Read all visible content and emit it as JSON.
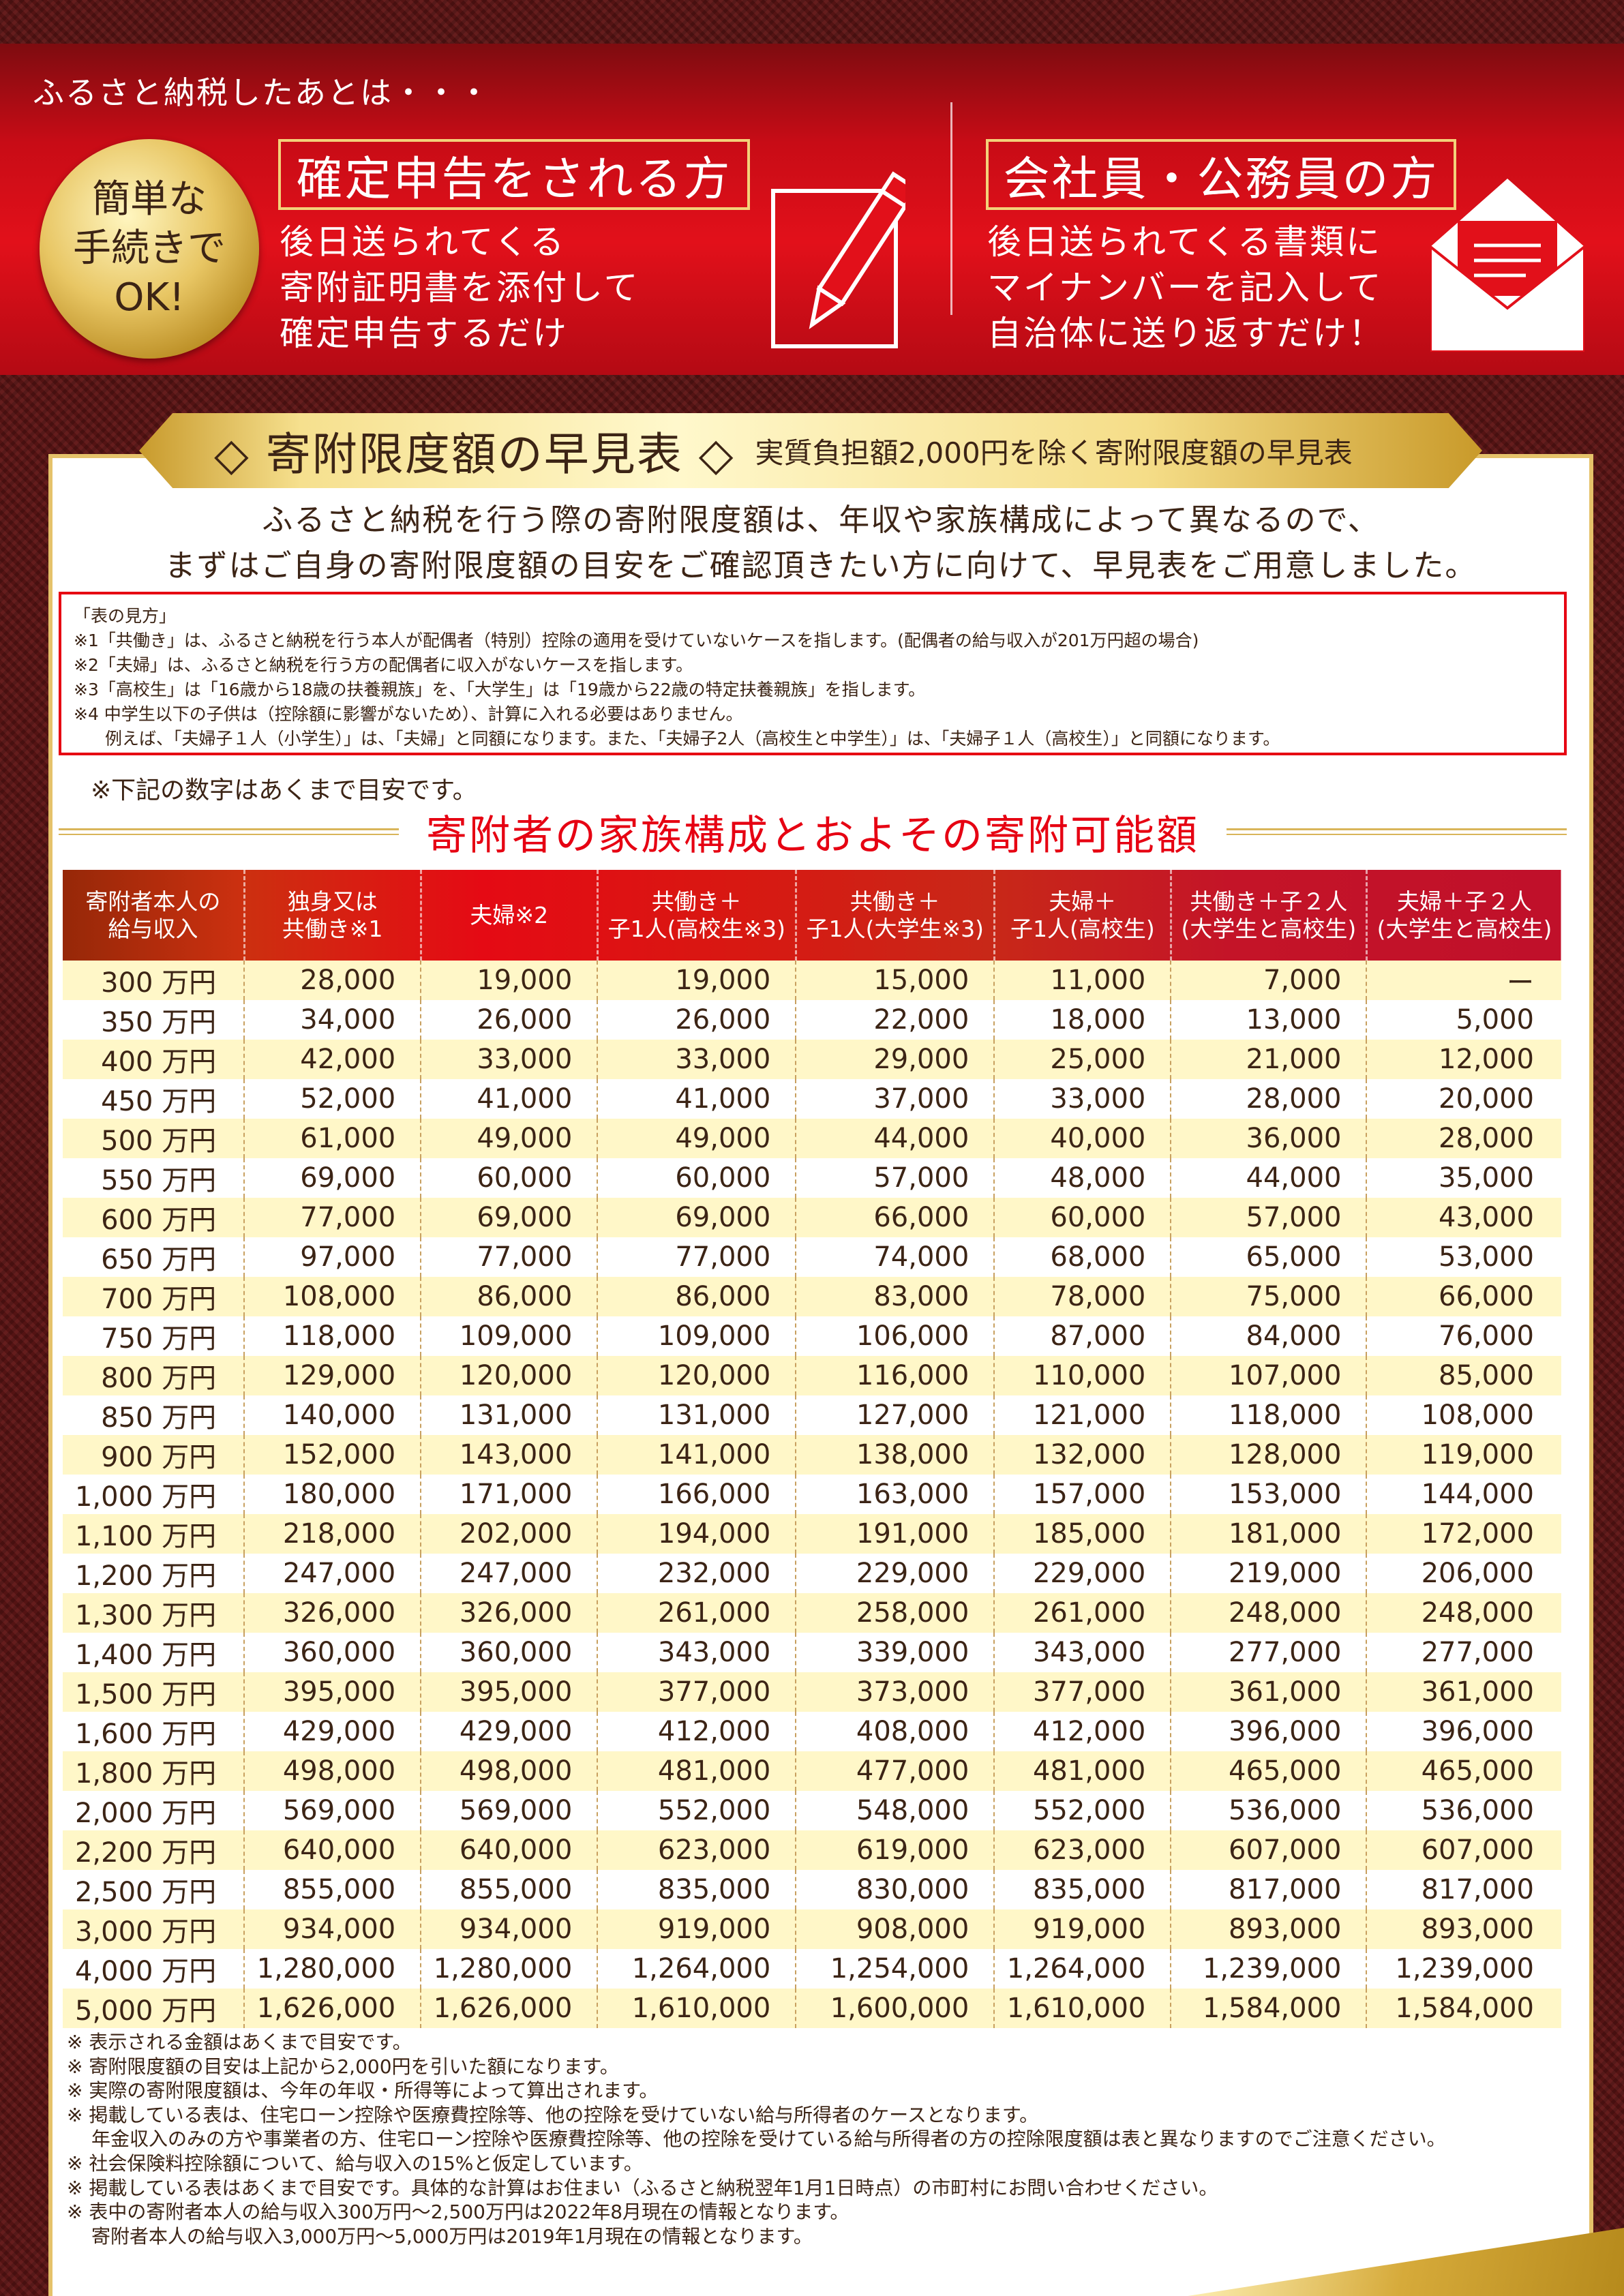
{
  "banner": {
    "title": "ふるさと納税したあとは・・・",
    "badge_lines": [
      "簡単な",
      "手続きで",
      "OK!"
    ],
    "left": {
      "heading": "確定申告をされる方",
      "lines": [
        "後日送られてくる",
        "寄附証明書を添付して",
        "確定申告するだけ"
      ],
      "icon": "pencil-paper-icon"
    },
    "right": {
      "heading": "会社員・公務員の方",
      "lines": [
        "後日送られてくる書類に",
        "マイナンバーを記入して",
        "自治体に送り返すだけ！"
      ],
      "icon": "envelope-icon"
    }
  },
  "ribbon": {
    "title": "◇ 寄附限度額の早見表 ◇",
    "subtitle": "実質負担額2,000円を除く寄附限度額の早見表"
  },
  "intro": [
    "ふるさと納税を行う際の寄附限度額は、年収や家族構成によって異なるので、",
    "まずはご自身の寄附限度額の目安をご確認頂きたい方に向けて、早見表をご用意しました。"
  ],
  "notes": [
    "「表の見方」",
    "※1「共働き」は、ふるさと納税を行う本人が配偶者（特別）控除の適用を受けていないケースを指します。(配偶者の給与収入が201万円超の場合)",
    "※2「夫婦」は、ふるさと納税を行う方の配偶者に収入がないケースを指します。",
    "※3「高校生」は「16歳から18歳の扶養親族」を、「大学生」は「19歳から22歳の特定扶養親族」を指します。",
    "※4 中学生以下の子供は（控除額に影響がないため）、計算に入れる必要はありません。",
    "例えば、「夫婦子１人（小学生）」は、「夫婦」と同額になります。また、「夫婦子2人（高校生と中学生）」は、「夫婦子１人（高校生）」と同額になります。"
  ],
  "caution": "※下記の数字はあくまで目安です。",
  "table_title": "寄附者の家族構成とおよその寄附可能額",
  "table": {
    "headers": [
      [
        "寄附者本人の",
        "給与収入"
      ],
      [
        "独身又は",
        "共働き※1"
      ],
      [
        "夫婦※2"
      ],
      [
        "共働き＋",
        "子1人(高校生※3)"
      ],
      [
        "共働き＋",
        "子1人(大学生※3)"
      ],
      [
        "夫婦＋",
        "子1人(高校生)"
      ],
      [
        "共働き＋子２人",
        "(大学生と高校生)"
      ],
      [
        "夫婦＋子２人",
        "(大学生と高校生)"
      ]
    ],
    "rows": [
      [
        "300 万円",
        "28,000",
        "19,000",
        "19,000",
        "15,000",
        "11,000",
        "7,000",
        "ー"
      ],
      [
        "350 万円",
        "34,000",
        "26,000",
        "26,000",
        "22,000",
        "18,000",
        "13,000",
        "5,000"
      ],
      [
        "400 万円",
        "42,000",
        "33,000",
        "33,000",
        "29,000",
        "25,000",
        "21,000",
        "12,000"
      ],
      [
        "450 万円",
        "52,000",
        "41,000",
        "41,000",
        "37,000",
        "33,000",
        "28,000",
        "20,000"
      ],
      [
        "500 万円",
        "61,000",
        "49,000",
        "49,000",
        "44,000",
        "40,000",
        "36,000",
        "28,000"
      ],
      [
        "550 万円",
        "69,000",
        "60,000",
        "60,000",
        "57,000",
        "48,000",
        "44,000",
        "35,000"
      ],
      [
        "600 万円",
        "77,000",
        "69,000",
        "69,000",
        "66,000",
        "60,000",
        "57,000",
        "43,000"
      ],
      [
        "650 万円",
        "97,000",
        "77,000",
        "77,000",
        "74,000",
        "68,000",
        "65,000",
        "53,000"
      ],
      [
        "700 万円",
        "108,000",
        "86,000",
        "86,000",
        "83,000",
        "78,000",
        "75,000",
        "66,000"
      ],
      [
        "750 万円",
        "118,000",
        "109,000",
        "109,000",
        "106,000",
        "87,000",
        "84,000",
        "76,000"
      ],
      [
        "800 万円",
        "129,000",
        "120,000",
        "120,000",
        "116,000",
        "110,000",
        "107,000",
        "85,000"
      ],
      [
        "850 万円",
        "140,000",
        "131,000",
        "131,000",
        "127,000",
        "121,000",
        "118,000",
        "108,000"
      ],
      [
        "900 万円",
        "152,000",
        "143,000",
        "141,000",
        "138,000",
        "132,000",
        "128,000",
        "119,000"
      ],
      [
        "1,000 万円",
        "180,000",
        "171,000",
        "166,000",
        "163,000",
        "157,000",
        "153,000",
        "144,000"
      ],
      [
        "1,100 万円",
        "218,000",
        "202,000",
        "194,000",
        "191,000",
        "185,000",
        "181,000",
        "172,000"
      ],
      [
        "1,200 万円",
        "247,000",
        "247,000",
        "232,000",
        "229,000",
        "229,000",
        "219,000",
        "206,000"
      ],
      [
        "1,300 万円",
        "326,000",
        "326,000",
        "261,000",
        "258,000",
        "261,000",
        "248,000",
        "248,000"
      ],
      [
        "1,400 万円",
        "360,000",
        "360,000",
        "343,000",
        "339,000",
        "343,000",
        "277,000",
        "277,000"
      ],
      [
        "1,500 万円",
        "395,000",
        "395,000",
        "377,000",
        "373,000",
        "377,000",
        "361,000",
        "361,000"
      ],
      [
        "1,600 万円",
        "429,000",
        "429,000",
        "412,000",
        "408,000",
        "412,000",
        "396,000",
        "396,000"
      ],
      [
        "1,800 万円",
        "498,000",
        "498,000",
        "481,000",
        "477,000",
        "481,000",
        "465,000",
        "465,000"
      ],
      [
        "2,000 万円",
        "569,000",
        "569,000",
        "552,000",
        "548,000",
        "552,000",
        "536,000",
        "536,000"
      ],
      [
        "2,200 万円",
        "640,000",
        "640,000",
        "623,000",
        "619,000",
        "623,000",
        "607,000",
        "607,000"
      ],
      [
        "2,500 万円",
        "855,000",
        "855,000",
        "835,000",
        "830,000",
        "835,000",
        "817,000",
        "817,000"
      ],
      [
        "3,000 万円",
        "934,000",
        "934,000",
        "919,000",
        "908,000",
        "919,000",
        "893,000",
        "893,000"
      ],
      [
        "4,000 万円",
        "1,280,000",
        "1,280,000",
        "1,264,000",
        "1,254,000",
        "1,264,000",
        "1,239,000",
        "1,239,000"
      ],
      [
        "5,000 万円",
        "1,626,000",
        "1,626,000",
        "1,610,000",
        "1,600,000",
        "1,610,000",
        "1,584,000",
        "1,584,000"
      ]
    ]
  },
  "footer_notes": [
    {
      "text": "※ 表示される金額はあくまで目安です。",
      "indent": false
    },
    {
      "text": "※ 寄附限度額の目安は上記から2,000円を引いた額になります。",
      "indent": false
    },
    {
      "text": "※ 実際の寄附限度額は、今年の年収・所得等によって算出されます。",
      "indent": false
    },
    {
      "text": "※ 掲載している表は、住宅ローン控除や医療費控除等、他の控除を受けていない給与所得者のケースとなります。",
      "indent": false
    },
    {
      "text": "年金収入のみの方や事業者の方、住宅ローン控除や医療費控除等、他の控除を受けている給与所得者の方の控除限度額は表と異なりますのでご注意ください。",
      "indent": true
    },
    {
      "text": "※ 社会保険料控除額について、給与収入の15%と仮定しています。",
      "indent": false
    },
    {
      "text": "※ 掲載している表はあくまで目安です。具体的な計算はお住まい（ふるさと納税翌年1月1日時点）の市町村にお問い合わせください。",
      "indent": false
    },
    {
      "text": "※ 表中の寄附者本人の給与収入300万円〜2,500万円は2022年8月現在の情報となります。",
      "indent": false
    },
    {
      "text": "寄附者本人の給与収入3,000万円〜5,000万円は2019年1月現在の情報となります。",
      "indent": true
    }
  ],
  "colors": {
    "accent_red": "#e60012",
    "gold": "#e5c26a",
    "text_brown": "#3c2415",
    "row_cream": "#fff7c8"
  }
}
